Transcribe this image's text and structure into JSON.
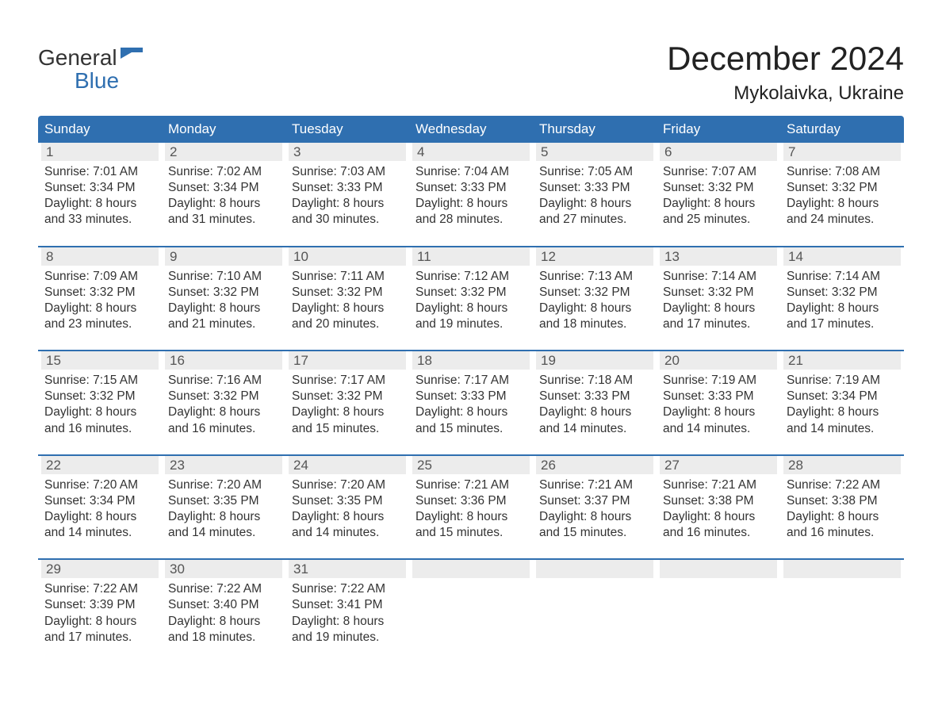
{
  "logo": {
    "top": "General",
    "bottom": "Blue",
    "top_color": "#333333",
    "bottom_color": "#2f6fb0"
  },
  "title": "December 2024",
  "location": "Mykolaivka, Ukraine",
  "colors": {
    "header_bg": "#2f6fb0",
    "header_text": "#ffffff",
    "daynum_bg": "#ececec",
    "daynum_text": "#555555",
    "body_text": "#333333",
    "separator": "#2f6fb0",
    "page_bg": "#ffffff"
  },
  "fonts": {
    "title_size": 42,
    "location_size": 24,
    "header_size": 17,
    "body_size": 15.5
  },
  "day_names": [
    "Sunday",
    "Monday",
    "Tuesday",
    "Wednesday",
    "Thursday",
    "Friday",
    "Saturday"
  ],
  "weeks": [
    [
      {
        "n": "1",
        "sunrise": "Sunrise: 7:01 AM",
        "sunset": "Sunset: 3:34 PM",
        "dl1": "Daylight: 8 hours",
        "dl2": "and 33 minutes."
      },
      {
        "n": "2",
        "sunrise": "Sunrise: 7:02 AM",
        "sunset": "Sunset: 3:34 PM",
        "dl1": "Daylight: 8 hours",
        "dl2": "and 31 minutes."
      },
      {
        "n": "3",
        "sunrise": "Sunrise: 7:03 AM",
        "sunset": "Sunset: 3:33 PM",
        "dl1": "Daylight: 8 hours",
        "dl2": "and 30 minutes."
      },
      {
        "n": "4",
        "sunrise": "Sunrise: 7:04 AM",
        "sunset": "Sunset: 3:33 PM",
        "dl1": "Daylight: 8 hours",
        "dl2": "and 28 minutes."
      },
      {
        "n": "5",
        "sunrise": "Sunrise: 7:05 AM",
        "sunset": "Sunset: 3:33 PM",
        "dl1": "Daylight: 8 hours",
        "dl2": "and 27 minutes."
      },
      {
        "n": "6",
        "sunrise": "Sunrise: 7:07 AM",
        "sunset": "Sunset: 3:32 PM",
        "dl1": "Daylight: 8 hours",
        "dl2": "and 25 minutes."
      },
      {
        "n": "7",
        "sunrise": "Sunrise: 7:08 AM",
        "sunset": "Sunset: 3:32 PM",
        "dl1": "Daylight: 8 hours",
        "dl2": "and 24 minutes."
      }
    ],
    [
      {
        "n": "8",
        "sunrise": "Sunrise: 7:09 AM",
        "sunset": "Sunset: 3:32 PM",
        "dl1": "Daylight: 8 hours",
        "dl2": "and 23 minutes."
      },
      {
        "n": "9",
        "sunrise": "Sunrise: 7:10 AM",
        "sunset": "Sunset: 3:32 PM",
        "dl1": "Daylight: 8 hours",
        "dl2": "and 21 minutes."
      },
      {
        "n": "10",
        "sunrise": "Sunrise: 7:11 AM",
        "sunset": "Sunset: 3:32 PM",
        "dl1": "Daylight: 8 hours",
        "dl2": "and 20 minutes."
      },
      {
        "n": "11",
        "sunrise": "Sunrise: 7:12 AM",
        "sunset": "Sunset: 3:32 PM",
        "dl1": "Daylight: 8 hours",
        "dl2": "and 19 minutes."
      },
      {
        "n": "12",
        "sunrise": "Sunrise: 7:13 AM",
        "sunset": "Sunset: 3:32 PM",
        "dl1": "Daylight: 8 hours",
        "dl2": "and 18 minutes."
      },
      {
        "n": "13",
        "sunrise": "Sunrise: 7:14 AM",
        "sunset": "Sunset: 3:32 PM",
        "dl1": "Daylight: 8 hours",
        "dl2": "and 17 minutes."
      },
      {
        "n": "14",
        "sunrise": "Sunrise: 7:14 AM",
        "sunset": "Sunset: 3:32 PM",
        "dl1": "Daylight: 8 hours",
        "dl2": "and 17 minutes."
      }
    ],
    [
      {
        "n": "15",
        "sunrise": "Sunrise: 7:15 AM",
        "sunset": "Sunset: 3:32 PM",
        "dl1": "Daylight: 8 hours",
        "dl2": "and 16 minutes."
      },
      {
        "n": "16",
        "sunrise": "Sunrise: 7:16 AM",
        "sunset": "Sunset: 3:32 PM",
        "dl1": "Daylight: 8 hours",
        "dl2": "and 16 minutes."
      },
      {
        "n": "17",
        "sunrise": "Sunrise: 7:17 AM",
        "sunset": "Sunset: 3:32 PM",
        "dl1": "Daylight: 8 hours",
        "dl2": "and 15 minutes."
      },
      {
        "n": "18",
        "sunrise": "Sunrise: 7:17 AM",
        "sunset": "Sunset: 3:33 PM",
        "dl1": "Daylight: 8 hours",
        "dl2": "and 15 minutes."
      },
      {
        "n": "19",
        "sunrise": "Sunrise: 7:18 AM",
        "sunset": "Sunset: 3:33 PM",
        "dl1": "Daylight: 8 hours",
        "dl2": "and 14 minutes."
      },
      {
        "n": "20",
        "sunrise": "Sunrise: 7:19 AM",
        "sunset": "Sunset: 3:33 PM",
        "dl1": "Daylight: 8 hours",
        "dl2": "and 14 minutes."
      },
      {
        "n": "21",
        "sunrise": "Sunrise: 7:19 AM",
        "sunset": "Sunset: 3:34 PM",
        "dl1": "Daylight: 8 hours",
        "dl2": "and 14 minutes."
      }
    ],
    [
      {
        "n": "22",
        "sunrise": "Sunrise: 7:20 AM",
        "sunset": "Sunset: 3:34 PM",
        "dl1": "Daylight: 8 hours",
        "dl2": "and 14 minutes."
      },
      {
        "n": "23",
        "sunrise": "Sunrise: 7:20 AM",
        "sunset": "Sunset: 3:35 PM",
        "dl1": "Daylight: 8 hours",
        "dl2": "and 14 minutes."
      },
      {
        "n": "24",
        "sunrise": "Sunrise: 7:20 AM",
        "sunset": "Sunset: 3:35 PM",
        "dl1": "Daylight: 8 hours",
        "dl2": "and 14 minutes."
      },
      {
        "n": "25",
        "sunrise": "Sunrise: 7:21 AM",
        "sunset": "Sunset: 3:36 PM",
        "dl1": "Daylight: 8 hours",
        "dl2": "and 15 minutes."
      },
      {
        "n": "26",
        "sunrise": "Sunrise: 7:21 AM",
        "sunset": "Sunset: 3:37 PM",
        "dl1": "Daylight: 8 hours",
        "dl2": "and 15 minutes."
      },
      {
        "n": "27",
        "sunrise": "Sunrise: 7:21 AM",
        "sunset": "Sunset: 3:38 PM",
        "dl1": "Daylight: 8 hours",
        "dl2": "and 16 minutes."
      },
      {
        "n": "28",
        "sunrise": "Sunrise: 7:22 AM",
        "sunset": "Sunset: 3:38 PM",
        "dl1": "Daylight: 8 hours",
        "dl2": "and 16 minutes."
      }
    ],
    [
      {
        "n": "29",
        "sunrise": "Sunrise: 7:22 AM",
        "sunset": "Sunset: 3:39 PM",
        "dl1": "Daylight: 8 hours",
        "dl2": "and 17 minutes."
      },
      {
        "n": "30",
        "sunrise": "Sunrise: 7:22 AM",
        "sunset": "Sunset: 3:40 PM",
        "dl1": "Daylight: 8 hours",
        "dl2": "and 18 minutes."
      },
      {
        "n": "31",
        "sunrise": "Sunrise: 7:22 AM",
        "sunset": "Sunset: 3:41 PM",
        "dl1": "Daylight: 8 hours",
        "dl2": "and 19 minutes."
      },
      null,
      null,
      null,
      null
    ]
  ]
}
